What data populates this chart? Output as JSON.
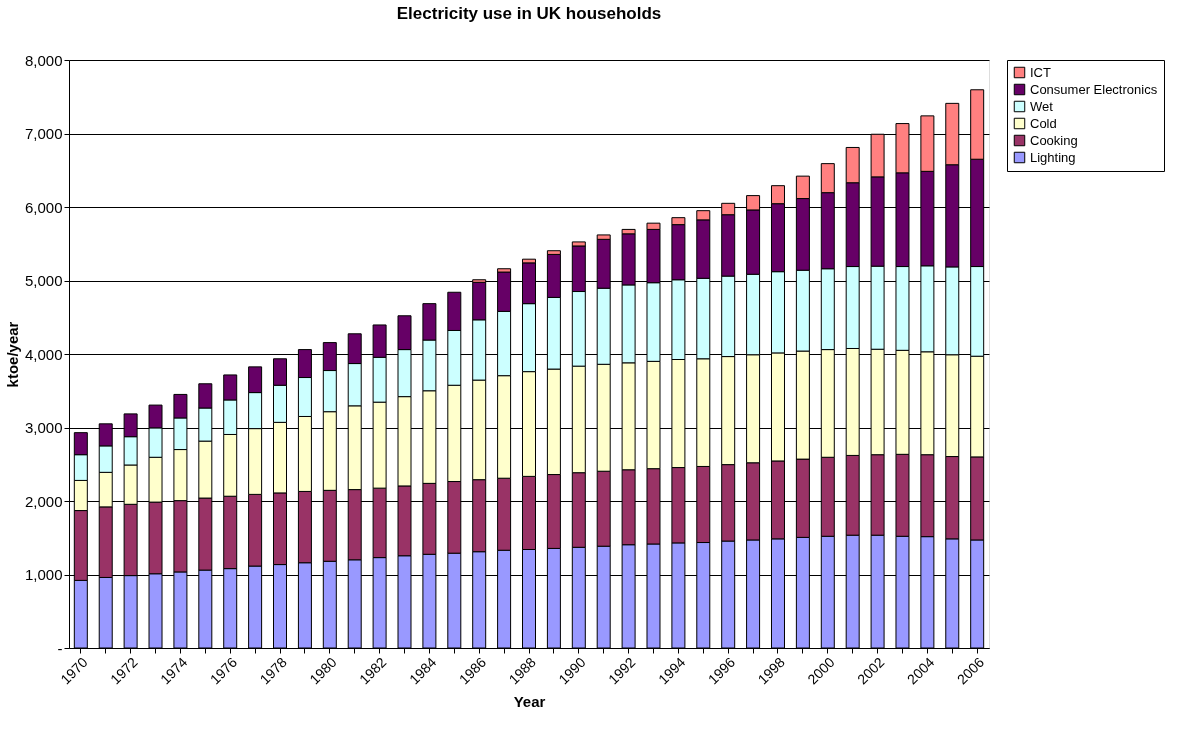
{
  "chart_data": {
    "type": "bar",
    "title": "Electricity use in UK households",
    "xlabel": "Year",
    "ylabel": "ktoe/year",
    "categories": [
      "1970",
      null,
      "1972",
      null,
      "1974",
      null,
      "1976",
      null,
      "1978",
      null,
      "1980",
      null,
      "1982",
      null,
      "1984",
      null,
      "1986",
      null,
      "1988",
      null,
      "1990",
      null,
      "1992",
      null,
      "1994",
      null,
      "1996",
      null,
      "1998",
      null,
      "2000",
      null,
      "2002",
      null,
      "2004",
      null,
      "2006"
    ],
    "stacked": true,
    "series": [
      {
        "name": "Lighting",
        "color": "#9999ff",
        "values": [
          920,
          960,
          985,
          1010,
          1035,
          1060,
          1080,
          1115,
          1135,
          1160,
          1180,
          1200,
          1230,
          1255,
          1275,
          1290,
          1310,
          1330,
          1340,
          1355,
          1370,
          1385,
          1405,
          1415,
          1430,
          1435,
          1455,
          1470,
          1485,
          1505,
          1520,
          1535,
          1535,
          1520,
          1515,
          1485,
          1470
        ]
      },
      {
        "name": "Cooking",
        "color": "#993366",
        "values": [
          950,
          960,
          970,
          975,
          970,
          980,
          985,
          975,
          975,
          970,
          965,
          955,
          945,
          950,
          965,
          975,
          980,
          980,
          995,
          1005,
          1015,
          1020,
          1020,
          1025,
          1025,
          1035,
          1040,
          1050,
          1060,
          1065,
          1075,
          1085,
          1095,
          1115,
          1115,
          1120,
          1130
        ]
      },
      {
        "name": "Cold",
        "color": "#ffffcc",
        "values": [
          410,
          470,
          535,
          610,
          695,
          775,
          840,
          895,
          960,
          1020,
          1070,
          1140,
          1170,
          1215,
          1260,
          1310,
          1355,
          1395,
          1425,
          1435,
          1450,
          1455,
          1455,
          1460,
          1470,
          1465,
          1470,
          1470,
          1470,
          1470,
          1465,
          1455,
          1435,
          1415,
          1400,
          1385,
          1370
        ]
      },
      {
        "name": "Wet",
        "color": "#ccffff",
        "values": [
          350,
          360,
          385,
          400,
          430,
          450,
          470,
          490,
          505,
          530,
          560,
          575,
          610,
          640,
          690,
          745,
          820,
          875,
          925,
          975,
          1015,
          1035,
          1060,
          1070,
          1085,
          1095,
          1095,
          1095,
          1105,
          1100,
          1100,
          1115,
          1130,
          1140,
          1170,
          1195,
          1220
        ]
      },
      {
        "name": "Consumer Electronics",
        "color": "#660066",
        "values": [
          300,
          300,
          310,
          310,
          320,
          330,
          340,
          350,
          360,
          380,
          380,
          405,
          440,
          460,
          495,
          520,
          510,
          535,
          555,
          585,
          620,
          665,
          695,
          725,
          750,
          795,
          835,
          875,
          925,
          975,
          1035,
          1140,
          1215,
          1275,
          1285,
          1390,
          1460
        ]
      },
      {
        "name": "ICT",
        "color": "#ff8080",
        "values": [
          null,
          null,
          null,
          null,
          null,
          null,
          null,
          null,
          null,
          null,
          null,
          null,
          null,
          null,
          null,
          null,
          35,
          45,
          50,
          50,
          55,
          60,
          60,
          85,
          95,
          125,
          155,
          195,
          245,
          305,
          395,
          480,
          580,
          670,
          755,
          835,
          945
        ]
      }
    ],
    "ylim": [
      0,
      8000
    ],
    "yticks": [
      {
        "value": 0,
        "label": "-"
      },
      {
        "value": 1000,
        "label": "1,000"
      },
      {
        "value": 2000,
        "label": "2,000"
      },
      {
        "value": 3000,
        "label": "3,000"
      },
      {
        "value": 4000,
        "label": "4,000"
      },
      {
        "value": 5000,
        "label": "5,000"
      },
      {
        "value": 6000,
        "label": "6,000"
      },
      {
        "value": 7000,
        "label": "7,000"
      },
      {
        "value": 8000,
        "label": "8,000"
      }
    ],
    "grid": "y",
    "legend": "right"
  }
}
